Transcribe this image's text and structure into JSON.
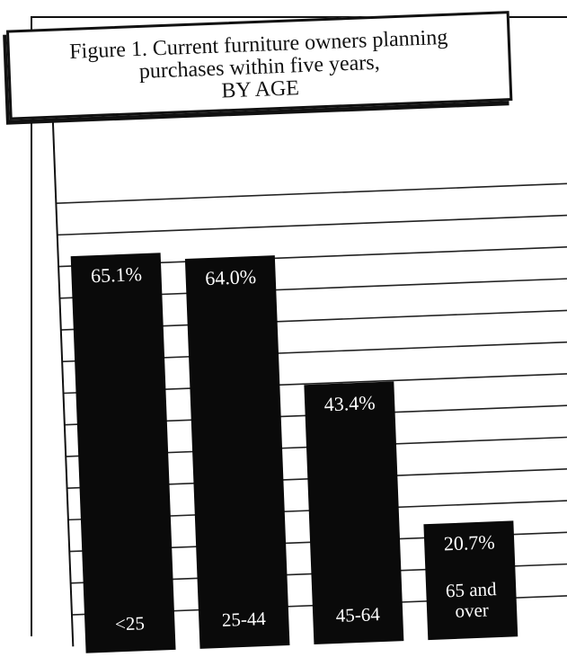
{
  "chart_data": {
    "type": "bar",
    "title": "Figure 1. Current furniture owners planning purchases within five years,",
    "subtitle": "BY AGE",
    "title_lines": [
      "Figure 1. Current furniture owners planning",
      "purchases within five years,",
      "BY AGE"
    ],
    "categories": [
      "<25",
      "25-44",
      "45-64",
      "65 and over"
    ],
    "category_label_lines": [
      [
        "<25"
      ],
      [
        "25-44"
      ],
      [
        "45-64"
      ],
      [
        "65 and",
        "over"
      ]
    ],
    "values": [
      65.1,
      64.0,
      43.4,
      20.7
    ],
    "value_labels": [
      "65.1%",
      "64.0%",
      "43.4%",
      "20.7%"
    ],
    "ylim": [
      0,
      70
    ],
    "bar_color": "#0a0a0a",
    "label_color": "#ffffff",
    "grid": true,
    "legend": "none"
  }
}
